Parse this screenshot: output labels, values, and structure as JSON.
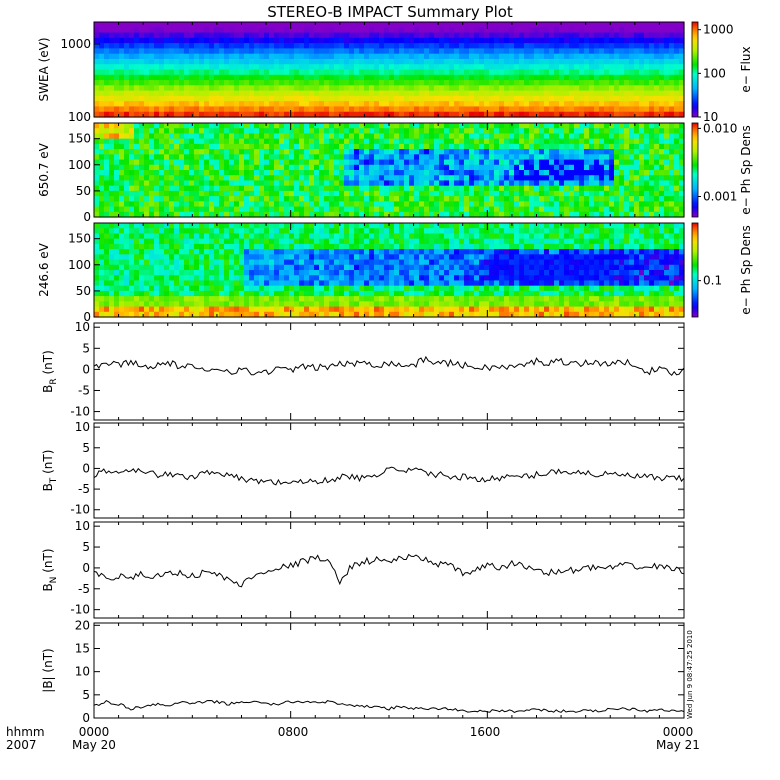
{
  "title": "STEREO-B IMPACT Summary Plot",
  "stamp": "Wed Jun 9 08:47:25 2010",
  "x_axis": {
    "row1_left": "hhmm",
    "row2_left": "2007",
    "ticks": [
      "0000",
      "0800",
      "1600",
      "0000"
    ],
    "dates": [
      "May 20",
      "May 21"
    ]
  },
  "colors": {
    "line": "#000000",
    "background": "#ffffff"
  },
  "chart_data": [
    {
      "id": "swea",
      "type": "heatmap",
      "ylabel": "SWEA (eV)",
      "yscale": "log",
      "ylim": [
        100,
        2000
      ],
      "yticks": [
        "1000",
        "100"
      ],
      "colorbar": {
        "label": "e− Flux",
        "scale": "log",
        "range": [
          10,
          1500
        ],
        "ticks": [
          "1000",
          "100",
          "10"
        ]
      },
      "xlim_hours": [
        0,
        24
      ],
      "description_levels": "flux decreases with energy: ~1500 at 100 eV, ~10 near 2000 eV"
    },
    {
      "id": "pad650",
      "type": "heatmap",
      "ylabel": "650.7 eV",
      "ylim": [
        0,
        180
      ],
      "yticks": [
        "150",
        "100",
        "50",
        "0"
      ],
      "colorbar": {
        "label": "e− Ph Sp Dens",
        "scale": "log",
        "range": [
          0.0005,
          0.012
        ],
        "ticks": [
          "0.010",
          "0.001"
        ]
      },
      "xlim_hours": [
        0,
        24
      ]
    },
    {
      "id": "pad246",
      "type": "heatmap",
      "ylabel": "246.6 eV",
      "ylim": [
        0,
        180
      ],
      "yticks": [
        "150",
        "100",
        "50",
        "0"
      ],
      "colorbar": {
        "label": "e− Ph Sp Dens",
        "scale": "log",
        "range": [
          0.05,
          0.3
        ],
        "ticks": [
          "0.1"
        ]
      },
      "xlim_hours": [
        0,
        24
      ]
    },
    {
      "id": "br",
      "type": "line",
      "ylabel": "B",
      "ysub": "R",
      "yunit": "(nT)",
      "ylim": [
        -12,
        11
      ],
      "yticks": [
        "10",
        "5",
        "0",
        "-5",
        "-10"
      ],
      "x_hours": [
        0,
        0.5,
        1,
        1.5,
        2,
        2.5,
        3,
        3.5,
        4,
        4.5,
        5,
        5.5,
        6,
        6.5,
        7,
        7.5,
        8,
        8.5,
        9,
        9.5,
        10,
        10.5,
        11,
        11.5,
        12,
        12.5,
        13,
        13.5,
        14,
        14.5,
        15,
        15.5,
        16,
        16.5,
        17,
        17.5,
        18,
        18.5,
        19,
        19.5,
        20,
        20.5,
        21,
        21.5,
        22,
        22.5,
        23,
        23.5,
        24
      ],
      "values": [
        0.5,
        1.5,
        1.0,
        2.0,
        0.5,
        1.0,
        1.5,
        0.8,
        0.5,
        -0.5,
        0.5,
        -0.5,
        0.0,
        -1.0,
        -0.5,
        0.0,
        0.0,
        0.5,
        0.5,
        0.5,
        1.5,
        1.0,
        2.0,
        1.0,
        1.5,
        1.0,
        1.0,
        2.5,
        1.5,
        1.5,
        1.0,
        0.5,
        0.5,
        0.5,
        0.5,
        1.0,
        2.0,
        1.5,
        2.0,
        1.5,
        1.5,
        1.5,
        1.5,
        1.5,
        1.5,
        -0.5,
        0.0,
        -1.0,
        0.0
      ]
    },
    {
      "id": "bt",
      "type": "line",
      "ylabel": "B",
      "ysub": "T",
      "yunit": "(nT)",
      "ylim": [
        -12,
        11
      ],
      "yticks": [
        "10",
        "5",
        "0",
        "-5",
        "-10"
      ],
      "x_hours": [
        0,
        0.5,
        1,
        1.5,
        2,
        2.5,
        3,
        3.5,
        4,
        4.5,
        5,
        5.5,
        6,
        6.5,
        7,
        7.5,
        8,
        8.5,
        9,
        9.5,
        10,
        10.5,
        11,
        11.5,
        12,
        12.5,
        13,
        13.5,
        14,
        14.5,
        15,
        15.5,
        16,
        16.5,
        17,
        17.5,
        18,
        18.5,
        19,
        19.5,
        20,
        20.5,
        21,
        21.5,
        22,
        22.5,
        23,
        23.5,
        24
      ],
      "values": [
        -1.5,
        -0.5,
        -1.0,
        0.0,
        -0.5,
        -1.5,
        -1.5,
        -2.0,
        -2.0,
        -1.0,
        -0.5,
        -2.0,
        -2.5,
        -3.0,
        -3.0,
        -3.5,
        -3.0,
        -3.5,
        -3.0,
        -3.0,
        -2.0,
        -2.0,
        -2.5,
        -2.0,
        0.5,
        -1.0,
        -0.5,
        -1.0,
        -1.5,
        -2.0,
        -2.0,
        -2.5,
        -2.5,
        -2.5,
        -2.0,
        -2.0,
        -1.5,
        -1.0,
        -0.5,
        -1.0,
        -1.0,
        -1.5,
        -1.5,
        -1.5,
        -2.0,
        -2.0,
        -2.5,
        -2.5,
        -2.5
      ]
    },
    {
      "id": "bn",
      "type": "line",
      "ylabel": "B",
      "ysub": "N",
      "yunit": "(nT)",
      "ylim": [
        -12,
        11
      ],
      "yticks": [
        "10",
        "5",
        "0",
        "-5",
        "-10"
      ],
      "x_hours": [
        0,
        0.5,
        1,
        1.5,
        2,
        2.5,
        3,
        3.5,
        4,
        4.5,
        5,
        5.5,
        6,
        6.5,
        7,
        7.5,
        8,
        8.5,
        9,
        9.5,
        10,
        10.5,
        11,
        11.5,
        12,
        12.5,
        13,
        13.5,
        14,
        14.5,
        15,
        15.5,
        16,
        16.5,
        17,
        17.5,
        18,
        18.5,
        19,
        19.5,
        20,
        20.5,
        21,
        21.5,
        22,
        22.5,
        23,
        23.5,
        24
      ],
      "values": [
        -1.0,
        -2.5,
        -2.0,
        -2.5,
        -1.5,
        -2.0,
        -1.5,
        -1.0,
        -2.0,
        -1.0,
        -1.5,
        -3.0,
        -4.0,
        -2.0,
        -0.5,
        0.0,
        0.5,
        1.5,
        2.5,
        1.5,
        -3.0,
        0.5,
        1.5,
        2.0,
        1.5,
        2.5,
        2.5,
        2.0,
        1.0,
        0.5,
        -1.5,
        -0.5,
        0.5,
        0.0,
        1.0,
        0.5,
        -0.5,
        -1.0,
        -1.0,
        -0.5,
        0.0,
        0.0,
        0.0,
        0.5,
        0.5,
        0.0,
        0.5,
        0.0,
        -1.0
      ]
    },
    {
      "id": "bmag",
      "type": "line",
      "ylabel": "|B|",
      "yunit": "(nT)",
      "ylim": [
        0,
        20.5
      ],
      "yticks": [
        "20",
        "15",
        "10",
        "5",
        "0"
      ],
      "x_hours": [
        0,
        0.5,
        1,
        1.5,
        2,
        2.5,
        3,
        3.5,
        4,
        4.5,
        5,
        5.5,
        6,
        6.5,
        7,
        7.5,
        8,
        8.5,
        9,
        9.5,
        10,
        10.5,
        11,
        11.5,
        12,
        12.5,
        13,
        13.5,
        14,
        14.5,
        15,
        15.5,
        16,
        16.5,
        17,
        17.5,
        18,
        18.5,
        19,
        19.5,
        20,
        20.5,
        21,
        21.5,
        22,
        22.5,
        23,
        23.5,
        24
      ],
      "values": [
        2.5,
        3.5,
        3.0,
        2.0,
        2.5,
        3.0,
        2.5,
        3.5,
        3.0,
        3.5,
        3.5,
        3.0,
        3.5,
        3.5,
        3.0,
        3.0,
        3.5,
        3.5,
        3.5,
        3.5,
        3.0,
        2.5,
        2.5,
        2.5,
        2.0,
        2.5,
        2.0,
        2.0,
        2.0,
        2.0,
        1.5,
        1.5,
        1.5,
        1.5,
        1.5,
        1.5,
        2.0,
        1.5,
        1.5,
        1.5,
        1.5,
        1.5,
        2.0,
        2.0,
        2.0,
        1.5,
        2.0,
        1.5,
        1.5
      ]
    }
  ]
}
